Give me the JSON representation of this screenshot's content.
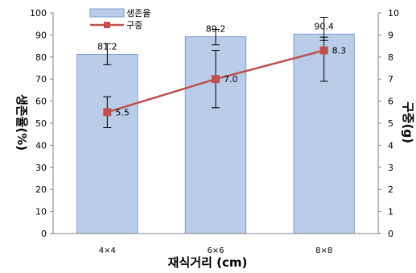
{
  "chart_data": {
    "type": "bar",
    "categories": [
      "4×4",
      "6×6",
      "8×8"
    ],
    "xlabel": "재식거리 (cm)",
    "grid": false,
    "legend_position": "top-left",
    "series": [
      {
        "name": "생존율",
        "type": "bar",
        "axis": "left",
        "values": [
          81.2,
          89.2,
          90.4
        ],
        "value_labels": [
          "81.2",
          "89.2",
          "90.4"
        ],
        "error_low": [
          76.5,
          85.5,
          87.5
        ],
        "error_high": [
          86.0,
          92.5,
          98.0
        ],
        "color": "#b9cde8"
      },
      {
        "name": "구중",
        "type": "line",
        "axis": "right",
        "values": [
          5.5,
          7.0,
          8.3
        ],
        "value_labels": [
          "5.5",
          "7.0",
          "8.3"
        ],
        "error_low": [
          4.8,
          5.7,
          6.9
        ],
        "error_high": [
          6.2,
          8.3,
          8.9
        ],
        "color": "#c0504d"
      }
    ],
    "y_left": {
      "label": "생존율(%)",
      "range": [
        0,
        100
      ],
      "ticks": [
        "0",
        "10",
        "20",
        "30",
        "40",
        "50",
        "60",
        "70",
        "80",
        "90",
        "100"
      ]
    },
    "y_right": {
      "label": "구중(g)",
      "range": [
        0,
        10
      ],
      "ticks": [
        "0",
        "1",
        "2",
        "3",
        "4",
        "5",
        "6",
        "7",
        "8",
        "9",
        "10"
      ]
    }
  }
}
